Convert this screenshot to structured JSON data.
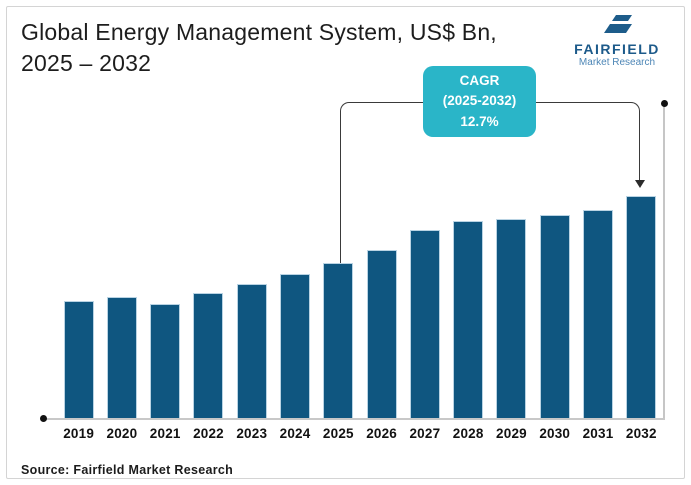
{
  "header": {
    "title_line1": "Global Energy Management System, US$ Bn,",
    "title_line2": "2025 – 2032"
  },
  "logo": {
    "name": "FAIRFIELD",
    "tagline": "Market Research"
  },
  "cagr_badge": {
    "line1": "CAGR",
    "line2": "(2025-2032)",
    "line3": "12.7%"
  },
  "source": "Source: Fairfield Market Research",
  "colors": {
    "bar": "#0f5680",
    "bar_edge": "#b9d3e3",
    "badge": "#2ab5c8",
    "logo_navy": "#1c5a8a",
    "logo_light_blue": "#4d86b6",
    "axis_gray": "#c8c8c8",
    "bracket_line": "#3a3a3a",
    "title_text": "#1d1d1d"
  },
  "chart_data": {
    "type": "bar",
    "title": "Global Energy Management System, US$ Bn, 2025 – 2032",
    "categories": [
      "2019",
      "2020",
      "2021",
      "2022",
      "2023",
      "2024",
      "2025",
      "2026",
      "2027",
      "2028",
      "2029",
      "2030",
      "2031",
      "2032"
    ],
    "values_relative": [
      117,
      121,
      114,
      125,
      134,
      144,
      155,
      168,
      188,
      197,
      199,
      203,
      208,
      222
    ],
    "values_note": "Bars carry no numeric labels in the figure; values are relative heights (px) estimated from the image",
    "xlabel": "",
    "ylabel": "",
    "grid": false,
    "legend": false,
    "annotation": {
      "label": "CAGR (2025-2032) 12.7%",
      "applies_from": "2025",
      "applies_to": "2032"
    }
  }
}
